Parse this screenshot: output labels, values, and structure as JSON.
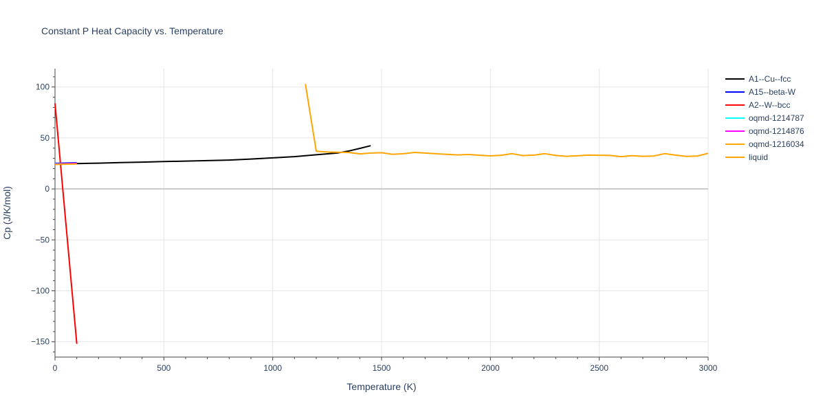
{
  "chart_data": {
    "type": "line",
    "title": "Constant P Heat Capacity vs. Temperature",
    "xlabel": "Temperature (K)",
    "ylabel": "Cp (J/K/mol)",
    "xlim": [
      0,
      3000
    ],
    "ylim": [
      -165,
      118
    ],
    "x_ticks": [
      0,
      500,
      1000,
      1500,
      2000,
      2500,
      3000
    ],
    "x_tick_labels": [
      "0",
      "500",
      "1000",
      "1500",
      "2000",
      "2500",
      "3000"
    ],
    "y_ticks": [
      100,
      50,
      0,
      -50,
      -100,
      -150
    ],
    "y_tick_labels": [
      "100",
      "50",
      "0",
      "−50",
      "−100",
      "−150"
    ],
    "grid": true,
    "legend_position": "right",
    "series": [
      {
        "name": "A1--Cu--fcc",
        "color": "#000000",
        "x": [
          0,
          100,
          200,
          300,
          400,
          500,
          600,
          700,
          800,
          900,
          1000,
          1100,
          1200,
          1300,
          1350,
          1400,
          1450
        ],
        "y": [
          24.6,
          24.9,
          25.3,
          25.8,
          26.3,
          26.8,
          27.3,
          27.8,
          28.3,
          29.3,
          30.5,
          31.7,
          33.5,
          35.3,
          37.2,
          39.8,
          42.4
        ]
      },
      {
        "name": "A15--beta-W",
        "color": "#0000ff",
        "x": [
          0,
          100
        ],
        "y": [
          25.2,
          25.6
        ]
      },
      {
        "name": "A2--W--bcc",
        "color": "#ff0000",
        "x": [
          0,
          100
        ],
        "y": [
          84,
          -152
        ]
      },
      {
        "name": "oqmd-1214787",
        "color": "#00ffff",
        "x": [
          0,
          100
        ],
        "y": [
          24.8,
          24.9
        ]
      },
      {
        "name": "oqmd-1214876",
        "color": "#ff00ff",
        "x": [
          0,
          100
        ],
        "y": [
          24.4,
          25.1
        ]
      },
      {
        "name": "oqmd-1216034",
        "color": "#ffa500",
        "x": [
          0,
          100
        ],
        "y": [
          24.0,
          24.5
        ]
      },
      {
        "name": "liquid",
        "color": "#ffa500",
        "x": [
          1150,
          1200,
          1250,
          1300,
          1350,
          1400,
          1450,
          1500,
          1550,
          1600,
          1650,
          1700,
          1750,
          1800,
          1850,
          1900,
          1950,
          2000,
          2050,
          2100,
          2150,
          2200,
          2250,
          2300,
          2350,
          2400,
          2450,
          2500,
          2550,
          2600,
          2650,
          2700,
          2750,
          2800,
          2850,
          2900,
          2950,
          3000
        ],
        "y": [
          103,
          37,
          36.2,
          36,
          35.8,
          34.4,
          35.2,
          35.5,
          34,
          34.5,
          35.8,
          35.2,
          34.5,
          34,
          33.4,
          33.8,
          33,
          32.4,
          33,
          34.6,
          32.7,
          33.2,
          34.6,
          32.8,
          32,
          32.5,
          33.2,
          33,
          32.8,
          31.7,
          32.6,
          32,
          32.3,
          34.6,
          33.2,
          31.9,
          32.2,
          35
        ]
      }
    ]
  }
}
